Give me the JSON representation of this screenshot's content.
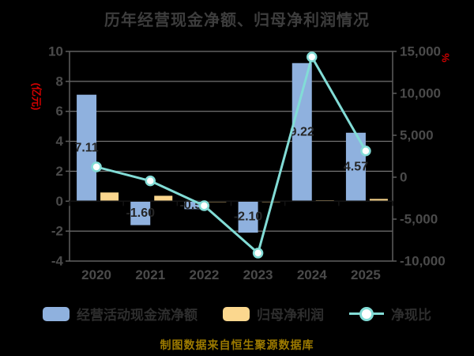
{
  "title": "历年经营现金净额、归母净利润情况",
  "footer": "制图数据来自恒生聚源数据库",
  "legend": [
    {
      "label": "经营活动现金流净额",
      "type": "bar",
      "color": "#8FB1DE"
    },
    {
      "label": "归母净利润",
      "type": "bar",
      "color": "#FBD78E"
    },
    {
      "label": "净现比",
      "type": "line",
      "color": "#82DCD6"
    }
  ],
  "chart_data": {
    "type": "combo-bar-line",
    "categories": [
      "2020",
      "2021",
      "2022",
      "2023",
      "2024",
      "2025"
    ],
    "series": [
      {
        "name": "经营活动现金流净额",
        "type": "bar",
        "axis": "left",
        "unit": "亿元",
        "color": "#8FB1DE",
        "values": [
          7.11,
          -1.6,
          -0.53,
          -2.1,
          9.22,
          4.57
        ],
        "labels": [
          "7.11",
          "-1.60",
          "-0.53",
          "-2.10",
          "9.22",
          "4.57"
        ]
      },
      {
        "name": "归母净利润",
        "type": "bar",
        "axis": "left",
        "unit": "亿元",
        "color": "#FBD78E",
        "values": [
          0.58,
          0.36,
          0.02,
          0.02,
          0.06,
          0.15
        ]
      },
      {
        "name": "净现比",
        "type": "line",
        "axis": "right",
        "unit": "%",
        "color": "#82DCD6",
        "values": [
          1230,
          -440,
          -3400,
          -9050,
          14340,
          3140
        ]
      }
    ],
    "y_left": {
      "unit_label": "(亿元)",
      "min": -4,
      "max": 10,
      "step": 2,
      "ticks": [
        "10",
        "8",
        "6",
        "4",
        "2",
        "0",
        "-2",
        "-4"
      ]
    },
    "y_right": {
      "unit_label": "%",
      "min": -10000,
      "max": 15000,
      "step": 5000,
      "ticks": [
        "15,000",
        "10,000",
        "5,000",
        "0",
        "-5,000",
        "-10,000"
      ]
    },
    "grid": true,
    "legend_position": "bottom"
  },
  "colors": {
    "background": "#000000",
    "title_text": "#3d3d3d",
    "axis_unit": "#d40000",
    "tick_label": "#4a4a4a",
    "grid_line": "#8f8f8f",
    "axis_spine": "#5e5e5e",
    "zero_line": "#141414",
    "bar_cashflow": "#8FB1DE",
    "bar_netprofit": "#FBD78E",
    "ratio_line": "#82DCD6",
    "marker_fill": "#ffffff",
    "bar_label": "#262626",
    "legend_text": "#2e2e2e",
    "footer_text": "#9c7a00"
  }
}
